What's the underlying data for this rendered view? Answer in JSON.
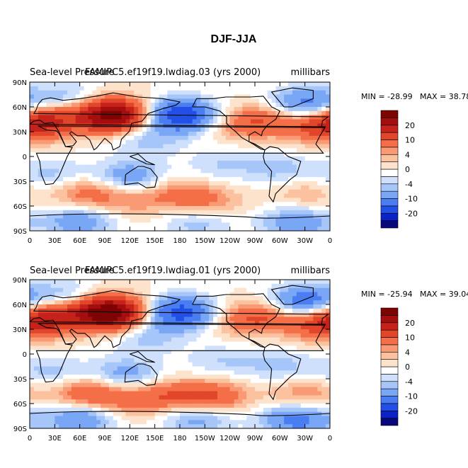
{
  "figure": {
    "title": "DJF-JJA"
  },
  "colors": {
    "scale": [
      "#08087a",
      "#0a22c8",
      "#2250e6",
      "#4a7cf2",
      "#7aa6f6",
      "#a6c6fa",
      "#cfe0fc",
      "#ffffff",
      "#fde2cc",
      "#fcc2a0",
      "#fa9a74",
      "#f46e48",
      "#e2462a",
      "#c4221a",
      "#a40e0e",
      "#7e0404"
    ]
  },
  "chart_data": [
    {
      "type": "heatmap",
      "subtitle_left_a": "Sea-level Pressure",
      "subtitle_left_b": "FAMIPC5.ef19f19.lwdiag.03 (yrs 2000)",
      "subtitle_right": "millibars",
      "min_label": "MIN = -28.99",
      "max_label": "MAX =  38.78",
      "stats": {
        "min": -28.99,
        "max": 38.78
      },
      "lat_ticks": [
        "90N",
        "60N",
        "30N",
        "0",
        "30S",
        "60S",
        "90S"
      ],
      "lon_ticks": [
        "0",
        "30E",
        "60E",
        "90E",
        "120E",
        "150E",
        "180",
        "150W",
        "120W",
        "90W",
        "60W",
        "30W",
        "0"
      ],
      "colorbar_labels": [
        "20",
        "10",
        "4",
        "0",
        "-4",
        "-10",
        "-20"
      ],
      "anomalies": [
        {
          "lon": 100,
          "lat": 50,
          "value": 28
        },
        {
          "lon": 20,
          "lat": 45,
          "value": 14
        },
        {
          "lon": 350,
          "lat": 35,
          "value": 10
        },
        {
          "lon": 260,
          "lat": 40,
          "value": 8
        },
        {
          "lon": 300,
          "lat": 48,
          "value": 6
        },
        {
          "lon": 180,
          "lat": 50,
          "value": -20
        },
        {
          "lon": 330,
          "lat": 62,
          "value": -14
        },
        {
          "lon": 40,
          "lat": 70,
          "value": -6
        },
        {
          "lon": 140,
          "lat": 20,
          "value": -5
        },
        {
          "lon": 120,
          "lat": -25,
          "value": -9
        },
        {
          "lon": 25,
          "lat": -22,
          "value": -5
        },
        {
          "lon": 300,
          "lat": -15,
          "value": -5
        },
        {
          "lon": 230,
          "lat": -10,
          "value": -4
        },
        {
          "lon": 70,
          "lat": -45,
          "value": 8
        },
        {
          "lon": 170,
          "lat": -45,
          "value": 5
        },
        {
          "lon": 210,
          "lat": -55,
          "value": 7
        },
        {
          "lon": 330,
          "lat": -45,
          "value": 4
        },
        {
          "lon": 120,
          "lat": -55,
          "value": 4
        },
        {
          "lon": 60,
          "lat": -78,
          "value": -9
        },
        {
          "lon": 200,
          "lat": -78,
          "value": -6
        },
        {
          "lon": 320,
          "lat": -80,
          "value": -9
        }
      ]
    },
    {
      "type": "heatmap",
      "subtitle_left_a": "Sea-level Pressure",
      "subtitle_left_b": "FAMIPC5.ef19f19.lwdiag.01 (yrs 2000)",
      "subtitle_right": "millibars",
      "min_label": "MIN = -25.94",
      "max_label": "MAX =  39.04",
      "stats": {
        "min": -25.94,
        "max": 39.04
      },
      "lat_ticks": [
        "90N",
        "60N",
        "30N",
        "0",
        "30S",
        "60S",
        "90S"
      ],
      "lon_ticks": [
        "0",
        "30E",
        "60E",
        "90E",
        "120E",
        "150E",
        "180",
        "150W",
        "120W",
        "90W",
        "60W",
        "30W",
        "0"
      ],
      "colorbar_labels": [
        "20",
        "10",
        "4",
        "0",
        "-4",
        "-10",
        "-20"
      ],
      "anomalies": [
        {
          "lon": 95,
          "lat": 50,
          "value": 32
        },
        {
          "lon": 20,
          "lat": 45,
          "value": 15
        },
        {
          "lon": 350,
          "lat": 35,
          "value": 10
        },
        {
          "lon": 260,
          "lat": 42,
          "value": 8
        },
        {
          "lon": 295,
          "lat": 48,
          "value": 6
        },
        {
          "lon": 180,
          "lat": 50,
          "value": -18
        },
        {
          "lon": 330,
          "lat": 62,
          "value": -16
        },
        {
          "lon": 40,
          "lat": 70,
          "value": -6
        },
        {
          "lon": 140,
          "lat": 20,
          "value": -5
        },
        {
          "lon": 115,
          "lat": -25,
          "value": -8
        },
        {
          "lon": 25,
          "lat": -22,
          "value": -5
        },
        {
          "lon": 300,
          "lat": -15,
          "value": -5
        },
        {
          "lon": 230,
          "lat": -8,
          "value": -4
        },
        {
          "lon": 70,
          "lat": -48,
          "value": 10
        },
        {
          "lon": 165,
          "lat": -50,
          "value": 8
        },
        {
          "lon": 220,
          "lat": -52,
          "value": 10
        },
        {
          "lon": 330,
          "lat": -48,
          "value": 6
        },
        {
          "lon": 120,
          "lat": -58,
          "value": 5
        },
        {
          "lon": 60,
          "lat": -78,
          "value": -10
        },
        {
          "lon": 200,
          "lat": -78,
          "value": -8
        },
        {
          "lon": 320,
          "lat": -80,
          "value": -12
        }
      ]
    }
  ]
}
